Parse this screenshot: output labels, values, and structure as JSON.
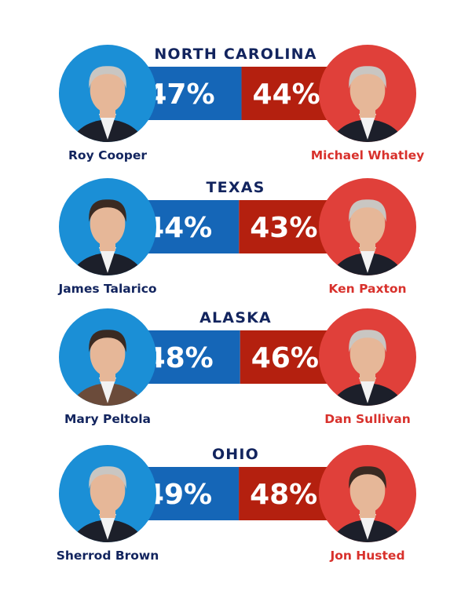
{
  "colors": {
    "dem_bar": "#1566b7",
    "dem_circle": "#1b8fd6",
    "rep_bar": "#b4200f",
    "rep_circle": "#e0403a",
    "title_text": "#12245e",
    "dem_name": "#12245e",
    "rep_name": "#d8312c",
    "pct_text": "#ffffff",
    "skin": "#e6b798",
    "hair_gray": "#c9c6c2",
    "hair_dark": "#3a2a22",
    "suit_dark": "#1c1f2a"
  },
  "chart_data": {
    "type": "bar",
    "races": [
      {
        "state": "NORTH CAROLINA",
        "dem": {
          "name": "Roy Cooper",
          "value": 47,
          "label": "47%"
        },
        "rep": {
          "name": "Michael Whatley",
          "value": 44,
          "label": "44%"
        }
      },
      {
        "state": "TEXAS",
        "dem": {
          "name": "James Talarico",
          "value": 44,
          "label": "44%"
        },
        "rep": {
          "name": "Ken Paxton",
          "value": 43,
          "label": "43%"
        }
      },
      {
        "state": "ALASKA",
        "dem": {
          "name": "Mary Peltola",
          "value": 48,
          "label": "48%"
        },
        "rep": {
          "name": "Dan Sullivan",
          "value": 46,
          "label": "46%"
        }
      },
      {
        "state": "OHIO",
        "dem": {
          "name": "Sherrod Brown",
          "value": 49,
          "label": "49%"
        },
        "rep": {
          "name": "Jon Husted",
          "value": 48,
          "label": "48%"
        }
      }
    ]
  }
}
